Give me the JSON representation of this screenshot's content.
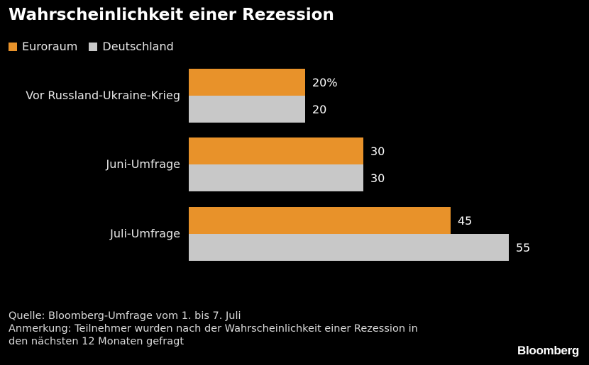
{
  "colors": {
    "euro": "#E8922A",
    "germany": "#C8C8C8",
    "background": "#000000"
  },
  "chart_data": {
    "type": "bar",
    "orientation": "horizontal",
    "title": "Wahrscheinlichkeit einer Rezession",
    "categories": [
      "Vor Russland-Ukraine-Krieg",
      "Juni-Umfrage",
      "Juli-Umfrage"
    ],
    "series": [
      {
        "name": "Euroraum",
        "values": [
          20,
          30,
          45
        ],
        "labels": [
          "20%",
          "30",
          "45"
        ]
      },
      {
        "name": "Deutschland",
        "values": [
          20,
          30,
          55
        ],
        "labels": [
          "20",
          "30",
          "55"
        ]
      }
    ],
    "legend": "top-left",
    "grid": false
  },
  "notes": {
    "source": "Quelle: Bloomberg-Umfrage vom 1. bis 7. Juli",
    "note_line1": "Anmerkung: Teilnehmer wurden nach der Wahrscheinlichkeit einer Rezession in",
    "note_line2": "den nächsten 12 Monaten gefragt"
  },
  "logo_text": "Bloomberg"
}
